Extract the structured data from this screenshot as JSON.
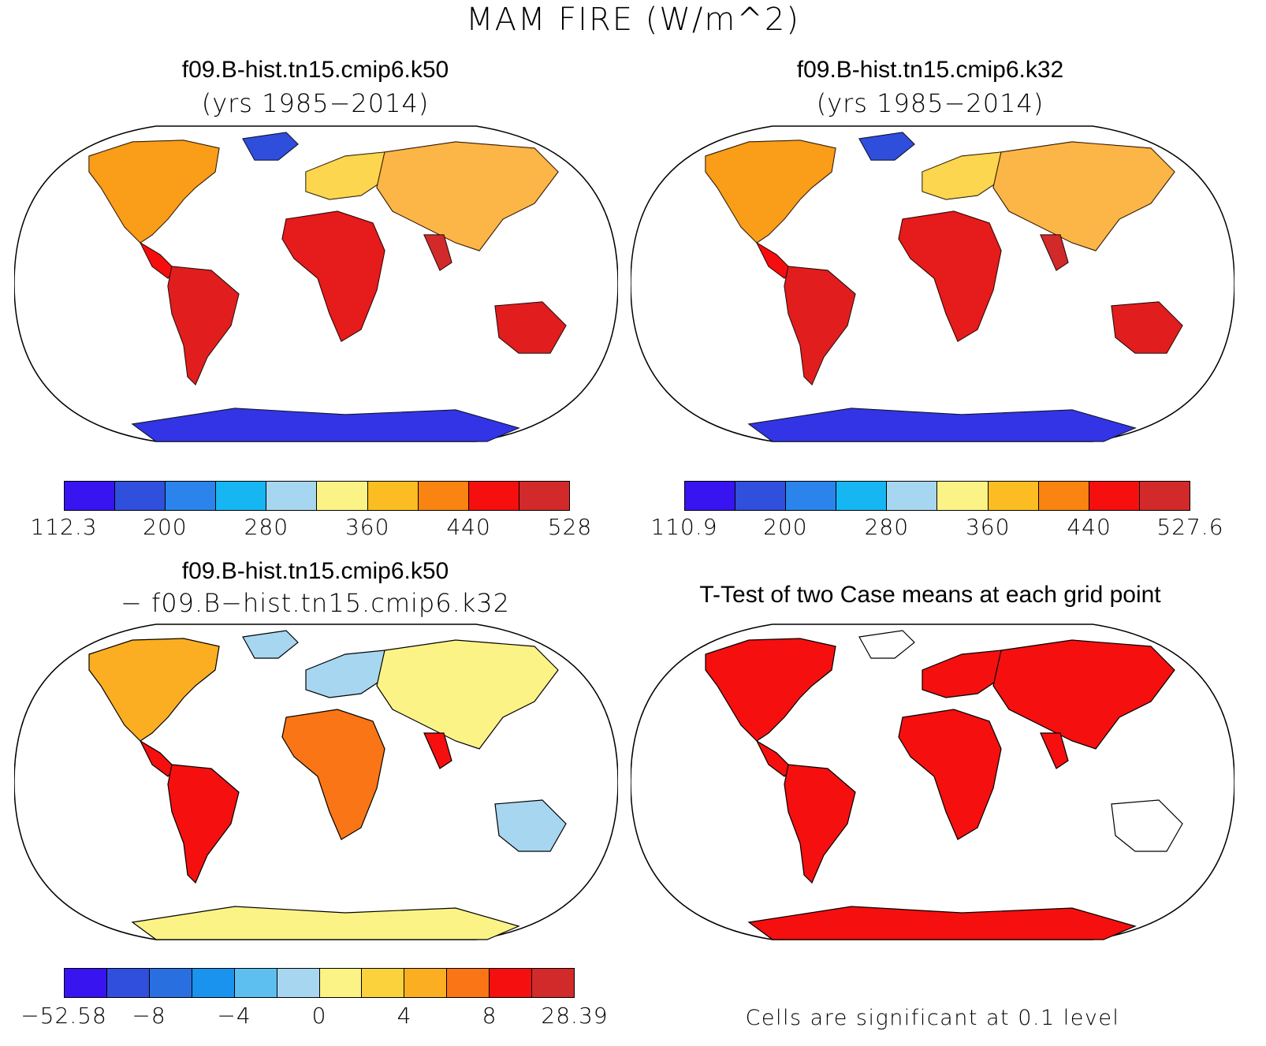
{
  "figure": {
    "title": "MAM FIRE (W/m^2)"
  },
  "panels": [
    {
      "id": "top-left",
      "title": "f09.B-hist.tn15.cmip6.k50",
      "subtitle": "(yrs 1985−2014)",
      "colorbar": {
        "colors": [
          "#3814f0",
          "#2f4fdc",
          "#2a84eb",
          "#16b6f2",
          "#a7d6f0",
          "#fcf387",
          "#fbbd21",
          "#f98412",
          "#f50f0f",
          "#d22a2a"
        ],
        "labels": [
          "112.3",
          "200",
          "280",
          "360",
          "440",
          "528"
        ]
      }
    },
    {
      "id": "top-right",
      "title": "f09.B-hist.tn15.cmip6.k32",
      "subtitle": "(yrs 1985−2014)",
      "colorbar": {
        "colors": [
          "#3814f0",
          "#2f4fdc",
          "#2a84eb",
          "#16b6f2",
          "#a7d6f0",
          "#fcf387",
          "#fbbd21",
          "#f98412",
          "#f50f0f",
          "#d22a2a"
        ],
        "labels": [
          "110.9",
          "200",
          "280",
          "360",
          "440",
          "527.6"
        ]
      }
    },
    {
      "id": "bottom-left",
      "title": "f09.B-hist.tn15.cmip6.k50",
      "subtitle": "− f09.B−hist.tn15.cmip6.k32",
      "colorbar": {
        "colors": [
          "#3814f0",
          "#2f4fdc",
          "#2a6fdf",
          "#1a93ee",
          "#5dbff0",
          "#a7d6f0",
          "#fcf387",
          "#fbd23c",
          "#fbae22",
          "#f97516",
          "#f50f0f",
          "#d22a2a"
        ],
        "labels": [
          "−52.58",
          "−8",
          "−4",
          "0",
          "4",
          "8",
          "28.39"
        ]
      }
    },
    {
      "id": "bottom-right",
      "title": "T-Test of two Case means at each grid point",
      "note": "Cells are significant at 0.1 level"
    }
  ],
  "palette": {
    "significant": "#f50f0f",
    "ocean": "#ffffff",
    "outline": "#000000"
  }
}
